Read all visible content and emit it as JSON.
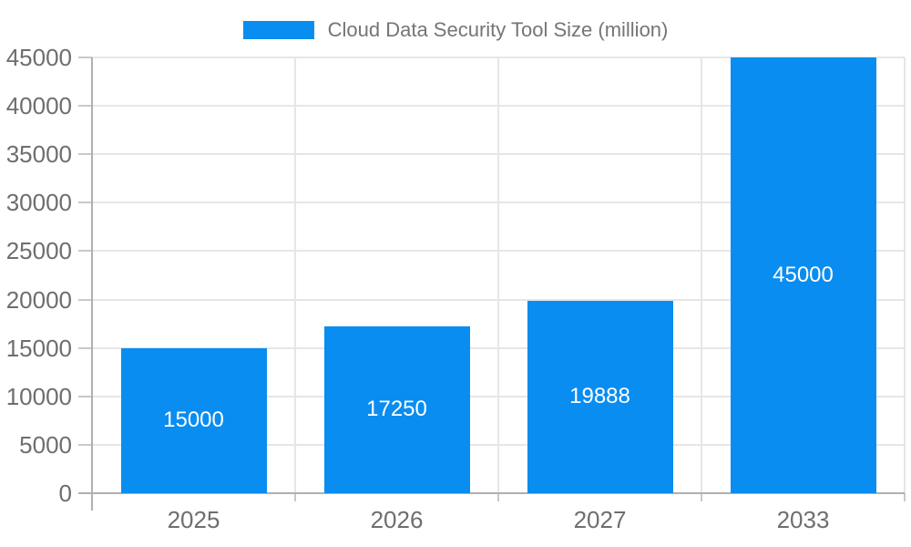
{
  "chart_data": {
    "type": "bar",
    "title": "Cloud Data Security Tool Size (million)",
    "categories": [
      "2025",
      "2026",
      "2027",
      "2033"
    ],
    "series": [
      {
        "name": "Cloud Data Security Tool Size (million)",
        "values": [
          15000,
          17250,
          19888,
          45000
        ]
      }
    ],
    "value_labels": [
      "15000",
      "17250",
      "19888",
      "45000"
    ],
    "xlabel": "",
    "ylabel": "",
    "ylim": [
      0,
      45000
    ],
    "y_ticks": [
      0,
      5000,
      10000,
      15000,
      20000,
      25000,
      30000,
      35000,
      40000,
      45000
    ],
    "y_tick_labels": [
      "0",
      "5000",
      "10000",
      "15000",
      "20000",
      "25000",
      "30000",
      "35000",
      "40000",
      "45000"
    ],
    "grid": true,
    "legend_position": "top",
    "colors": {
      "bar": "#0a8df0",
      "axis_text": "#6e6e6e",
      "legend_text": "#757575",
      "grid_line": "#e6e6e6",
      "tick_line": "#c9c9c9",
      "axis_line": "#b0b0b0",
      "value_label": "#ffffff",
      "background": "#ffffff"
    }
  }
}
